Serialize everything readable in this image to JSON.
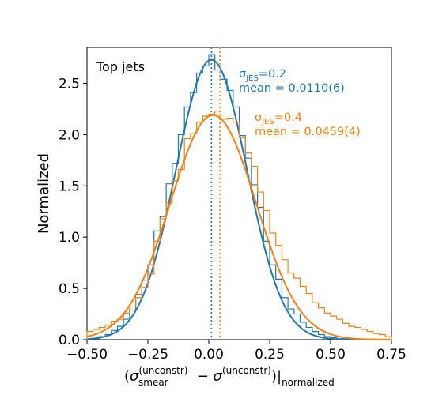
{
  "chart_data": {
    "type": "line",
    "title": "",
    "annotation_top_left": "Top jets",
    "xlabel": {
      "open": "(",
      "sigma": "σ",
      "smear_sup": "(unconstr)",
      "smear_sub": "smear",
      "minus": " − ",
      "sup2": "(unconstr)",
      "close": ")|",
      "sub_norm": "normalized"
    },
    "ylabel": "Normalized",
    "xlim": [
      -0.5,
      0.75
    ],
    "ylim": [
      0.0,
      2.85
    ],
    "x_ticks": [
      -0.5,
      -0.25,
      0.0,
      0.25,
      0.5,
      0.75
    ],
    "x_tick_labels": [
      "−0.50",
      "−0.25",
      "0.00",
      "0.25",
      "0.50",
      "0.75"
    ],
    "y_ticks": [
      0.0,
      0.5,
      1.0,
      1.5,
      2.0,
      2.5
    ],
    "y_tick_labels": [
      "0.0",
      "0.5",
      "1.0",
      "1.5",
      "2.0",
      "2.5"
    ],
    "grid": false,
    "series": [
      {
        "color": "#1f77b4",
        "label_sigma": "σ",
        "label_sub": "JES",
        "label_value": "=0.2",
        "mean_text": "mean = 0.0110(6)",
        "fit_mean": 0.011,
        "fit_sigma": 0.146,
        "fit_amplitude": 2.73,
        "vline_x": 0.011,
        "hist_bin_edges": [
          -0.5,
          -0.475,
          -0.45,
          -0.425,
          -0.4,
          -0.375,
          -0.35,
          -0.325,
          -0.3,
          -0.275,
          -0.25,
          -0.225,
          -0.2,
          -0.175,
          -0.15,
          -0.125,
          -0.1,
          -0.075,
          -0.05,
          -0.025,
          0.0,
          0.025,
          0.05,
          0.075,
          0.1,
          0.125,
          0.15,
          0.175,
          0.2,
          0.225,
          0.25,
          0.275,
          0.3,
          0.325,
          0.35,
          0.375,
          0.4,
          0.425,
          0.45,
          0.475,
          0.5,
          0.525,
          0.55,
          0.575,
          0.6,
          0.625,
          0.65,
          0.675,
          0.7,
          0.725,
          0.75
        ],
        "hist_values": [
          0.005,
          0.01,
          0.03,
          0.05,
          0.09,
          0.13,
          0.2,
          0.29,
          0.44,
          0.58,
          0.73,
          1.06,
          1.2,
          1.52,
          1.72,
          2.0,
          2.27,
          2.41,
          2.6,
          2.67,
          2.78,
          2.63,
          2.54,
          2.43,
          2.27,
          1.99,
          1.77,
          1.51,
          1.29,
          0.96,
          0.73,
          0.59,
          0.41,
          0.3,
          0.25,
          0.17,
          0.12,
          0.08,
          0.05,
          0.03,
          0.02,
          0.01,
          0.01,
          0.005,
          0.005,
          0.0,
          0.0,
          0.0,
          0.0,
          0.0
        ]
      },
      {
        "color": "#ff7f0e",
        "label_sigma": "σ",
        "label_sub": "JES",
        "label_value": "=0.4",
        "mean_text": "mean = 0.0459(4)",
        "fit_mean": 0.018,
        "fit_sigma": 0.177,
        "fit_amplitude": 2.19,
        "vline_x": 0.0459,
        "hist_bin_edges": [
          -0.5,
          -0.475,
          -0.45,
          -0.425,
          -0.4,
          -0.375,
          -0.35,
          -0.325,
          -0.3,
          -0.275,
          -0.25,
          -0.225,
          -0.2,
          -0.175,
          -0.15,
          -0.125,
          -0.1,
          -0.075,
          -0.05,
          -0.025,
          0.0,
          0.025,
          0.05,
          0.075,
          0.1,
          0.125,
          0.15,
          0.175,
          0.2,
          0.225,
          0.25,
          0.275,
          0.3,
          0.325,
          0.35,
          0.375,
          0.4,
          0.425,
          0.45,
          0.475,
          0.5,
          0.525,
          0.55,
          0.575,
          0.6,
          0.625,
          0.65,
          0.675,
          0.7,
          0.725,
          0.75
        ],
        "hist_values": [
          0.08,
          0.1,
          0.12,
          0.14,
          0.18,
          0.2,
          0.26,
          0.32,
          0.41,
          0.51,
          0.64,
          0.96,
          1.18,
          1.33,
          1.55,
          1.66,
          1.96,
          2.01,
          2.12,
          2.18,
          2.2,
          2.23,
          2.15,
          2.16,
          2.12,
          1.97,
          1.82,
          1.69,
          1.44,
          1.26,
          1.04,
          0.92,
          0.78,
          0.65,
          0.6,
          0.52,
          0.45,
          0.36,
          0.31,
          0.26,
          0.23,
          0.2,
          0.16,
          0.13,
          0.12,
          0.1,
          0.08,
          0.06,
          0.05,
          0.03
        ]
      }
    ]
  }
}
